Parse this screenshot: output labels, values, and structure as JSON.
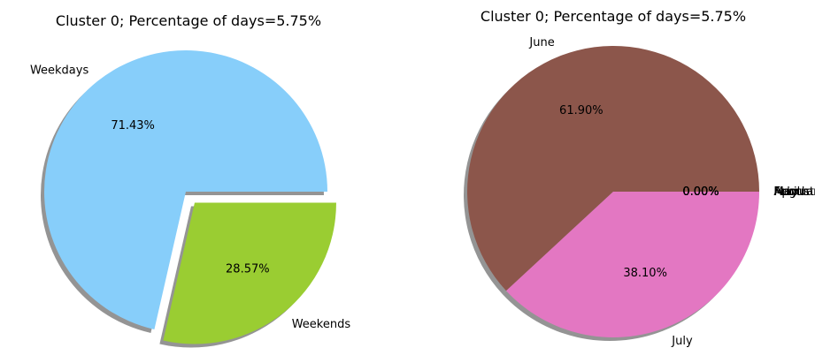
{
  "chart_data": [
    {
      "type": "pie",
      "title": "Cluster 0; Percentage of days=5.75%",
      "startangle": 0,
      "slices": [
        {
          "label": "Weekdays",
          "value": 71.43,
          "pct_label": "71.43%",
          "color": "#87CEFA",
          "explode": false
        },
        {
          "label": "Weekends",
          "value": 28.57,
          "pct_label": "28.57%",
          "color": "#9ACD32",
          "explode": true
        }
      ],
      "shadow": true
    },
    {
      "type": "pie",
      "title": "Cluster 0; Percentage of days=5.75%",
      "startangle": 0,
      "slices": [
        {
          "label": "June",
          "value": 61.9,
          "pct_label": "61.90%",
          "color": "#8C564B"
        },
        {
          "label": "July",
          "value": 38.1,
          "pct_label": "38.10%",
          "color": "#E377C2"
        },
        {
          "label": "August",
          "value": 0,
          "pct_label": "0.00%",
          "color": "#7F7F7F"
        },
        {
          "label": "May",
          "value": 0,
          "pct_label": "0.00%",
          "color": "#BCBD22"
        },
        {
          "label": "April",
          "value": 0,
          "pct_label": "0.00%",
          "color": "#17BECF"
        },
        {
          "label": "March",
          "value": 0,
          "pct_label": "0.00%",
          "color": "#1F77B4"
        },
        {
          "label": "February",
          "value": 0,
          "pct_label": "0.00%",
          "color": "#FF7F0E"
        }
      ],
      "shadow": true
    }
  ]
}
